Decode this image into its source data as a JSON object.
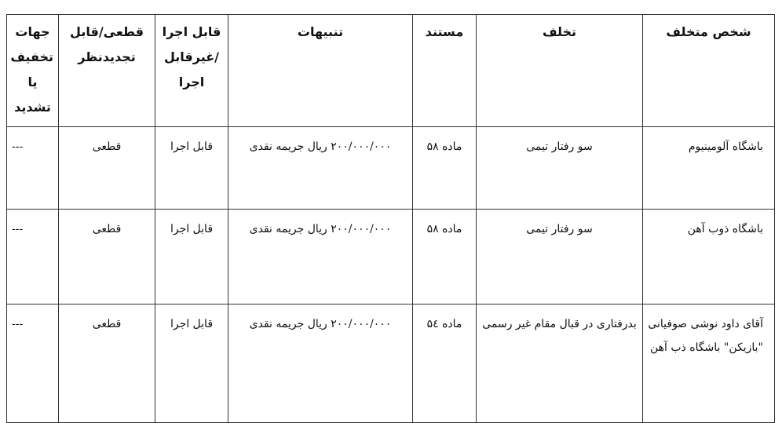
{
  "table": {
    "headers": [
      "شخص متخلف",
      "تخلف",
      "مستند",
      "تنبیهات",
      "قابل اجرا /غیرقابل اجرا",
      "قطعی/قابل تجدیدنظر",
      "جهات تخفیف یا تشدید"
    ],
    "rows": [
      [
        "باشگاه آلومینیوم",
        "سو رفتار تیمی",
        "ماده ۵۸",
        "۲۰۰/۰۰۰/۰۰۰ ریال جریمه نقدی",
        "قابل اجرا",
        "قطعی",
        "---"
      ],
      [
        "باشگاه ذوب آهن",
        "سو رفتار تیمی",
        "ماده ۵۸",
        "۲۰۰/۰۰۰/۰۰۰ ریال جریمه نقدی",
        "قابل اجرا",
        "قطعی",
        "---"
      ],
      [
        "آقای داود نوشی صوفیانی \"بازیکن\" باشگاه ذب آهن",
        "بدرفتاری در قبال مقام غیر رسمی",
        "ماده ۵٤",
        "۲۰۰/۰۰۰/۰۰۰ ریال جریمه نقدی",
        "قابل اجرا",
        "قطعی",
        "---"
      ]
    ]
  }
}
